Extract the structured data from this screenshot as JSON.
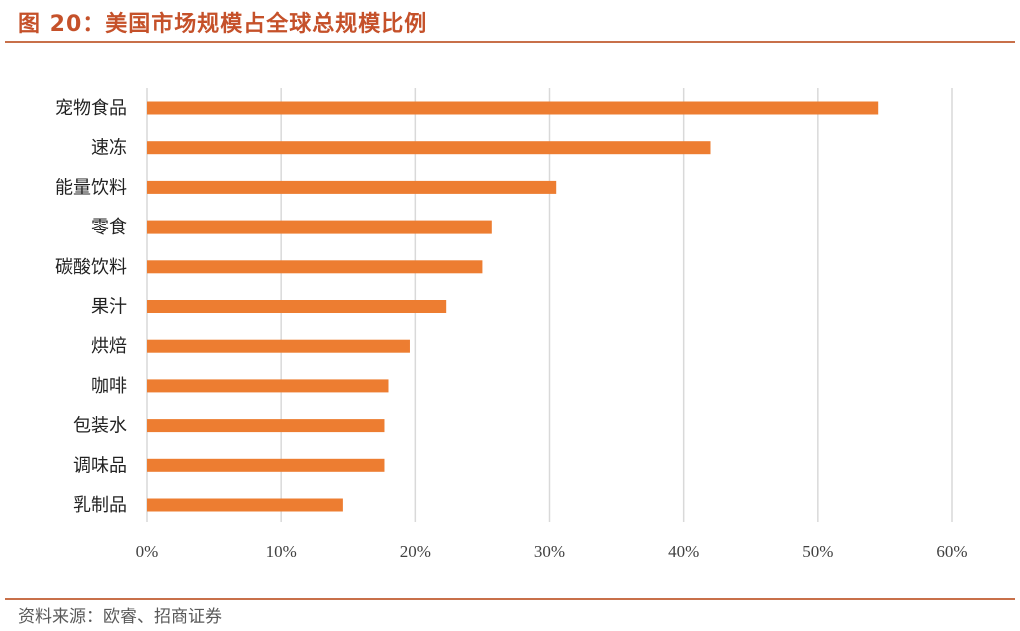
{
  "figure": {
    "title": "图 20：美国市场规模占全球总规模比例",
    "source": "资料来源：欧睿、招商证券"
  },
  "colors": {
    "bar": "#ed7d31",
    "grid": "#d9d9d9",
    "accent": "#c5512a"
  },
  "chart_data": {
    "type": "bar",
    "orientation": "horizontal",
    "categories": [
      "宠物食品",
      "速冻",
      "能量饮料",
      "零食",
      "碳酸饮料",
      "果汁",
      "烘焙",
      "咖啡",
      "包装水",
      "调味品",
      "乳制品"
    ],
    "values": [
      0.545,
      0.42,
      0.305,
      0.257,
      0.25,
      0.223,
      0.196,
      0.18,
      0.177,
      0.177,
      0.146
    ],
    "xlim": [
      0,
      0.6
    ],
    "xticks": [
      0,
      0.1,
      0.2,
      0.3,
      0.4,
      0.5,
      0.6
    ],
    "xtick_labels": [
      "0%",
      "10%",
      "20%",
      "30%",
      "40%",
      "50%",
      "60%"
    ],
    "grid": true,
    "legend": "none",
    "title": "",
    "xlabel": "",
    "ylabel": ""
  }
}
